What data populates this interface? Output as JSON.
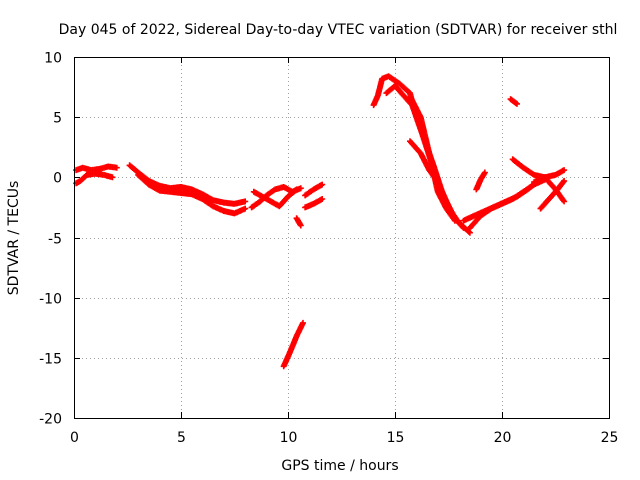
{
  "chart_data": {
    "type": "scatter",
    "title": "Day 045 of 2022, Sidereal Day-to-day VTEC variation (SDTVAR) for receiver sthl",
    "xlabel": "GPS time / hours",
    "ylabel": "SDTVAR / TECUs",
    "xlim": [
      0,
      25
    ],
    "ylim": [
      -20,
      10
    ],
    "xticks": [
      0,
      5,
      10,
      15,
      20,
      25
    ],
    "yticks": [
      -20,
      -15,
      -10,
      -5,
      0,
      5,
      10
    ],
    "xtick_labels": [
      "0",
      "5",
      "10",
      "15",
      "20",
      "25"
    ],
    "ytick_labels": [
      "-20",
      "-15",
      "-10",
      "-5",
      "0",
      "5",
      "10"
    ],
    "grid": true,
    "marker": "plus",
    "series": [
      {
        "name": "SDTVAR",
        "color": "#ff0000",
        "segments": [
          [
            [
              0.1,
              0.6
            ],
            [
              0.4,
              0.8
            ],
            [
              0.8,
              0.6
            ],
            [
              1.2,
              0.7
            ],
            [
              1.6,
              0.9
            ],
            [
              2.0,
              0.8
            ]
          ],
          [
            [
              0.1,
              -0.5
            ],
            [
              0.3,
              -0.3
            ],
            [
              0.6,
              0.2
            ],
            [
              1.0,
              0.3
            ],
            [
              1.4,
              0.2
            ],
            [
              1.8,
              0.0
            ]
          ],
          [
            [
              2.6,
              1.0
            ],
            [
              3.0,
              0.4
            ],
            [
              3.5,
              -0.3
            ],
            [
              4.0,
              -0.7
            ],
            [
              4.5,
              -0.9
            ],
            [
              5.0,
              -0.8
            ],
            [
              5.5,
              -1.0
            ],
            [
              6.0,
              -1.4
            ],
            [
              6.5,
              -1.9
            ],
            [
              7.0,
              -2.1
            ],
            [
              7.5,
              -2.2
            ],
            [
              8.0,
              -2.0
            ]
          ],
          [
            [
              3.0,
              0.2
            ],
            [
              3.5,
              -0.6
            ],
            [
              4.0,
              -1.1
            ],
            [
              4.5,
              -1.2
            ],
            [
              5.0,
              -1.3
            ],
            [
              5.5,
              -1.4
            ],
            [
              6.0,
              -1.8
            ],
            [
              6.5,
              -2.4
            ],
            [
              7.0,
              -2.8
            ],
            [
              7.5,
              -3.0
            ],
            [
              8.0,
              -2.6
            ]
          ],
          [
            [
              8.3,
              -2.5
            ],
            [
              8.7,
              -2.0
            ],
            [
              9.0,
              -1.5
            ],
            [
              9.4,
              -1.0
            ],
            [
              9.8,
              -0.8
            ],
            [
              10.2,
              -1.2
            ],
            [
              10.6,
              -0.9
            ]
          ],
          [
            [
              8.4,
              -1.2
            ],
            [
              8.8,
              -1.6
            ],
            [
              9.2,
              -2.0
            ],
            [
              9.6,
              -2.4
            ],
            [
              10.0,
              -1.6
            ],
            [
              10.4,
              -1.0
            ]
          ],
          [
            [
              10.8,
              -1.5
            ],
            [
              11.2,
              -1.0
            ],
            [
              11.6,
              -0.6
            ]
          ],
          [
            [
              10.8,
              -2.5
            ],
            [
              11.2,
              -2.2
            ],
            [
              11.6,
              -1.8
            ]
          ],
          [
            [
              10.4,
              -3.4
            ],
            [
              10.6,
              -4.0
            ]
          ],
          [
            [
              9.8,
              -15.7
            ],
            [
              10.1,
              -14.5
            ],
            [
              10.4,
              -13.2
            ],
            [
              10.7,
              -12.1
            ]
          ],
          [
            [
              14.0,
              6.0
            ],
            [
              14.2,
              6.8
            ],
            [
              14.4,
              8.2
            ],
            [
              14.7,
              8.4
            ],
            [
              15.2,
              7.8
            ],
            [
              15.7,
              7.0
            ],
            [
              16.0,
              5.0
            ],
            [
              16.4,
              3.0
            ],
            [
              16.8,
              1.0
            ],
            [
              17.2,
              -1.2
            ],
            [
              17.6,
              -2.8
            ],
            [
              18.0,
              -3.8
            ],
            [
              18.5,
              -4.6
            ]
          ],
          [
            [
              14.6,
              7.0
            ],
            [
              15.0,
              7.6
            ],
            [
              15.4,
              6.8
            ],
            [
              15.8,
              6.0
            ],
            [
              16.2,
              4.0
            ],
            [
              16.6,
              1.8
            ],
            [
              17.0,
              -0.4
            ],
            [
              17.4,
              -2.0
            ],
            [
              17.8,
              -3.4
            ],
            [
              18.2,
              -4.2
            ]
          ],
          [
            [
              15.8,
              6.4
            ],
            [
              16.2,
              5.0
            ],
            [
              16.6,
              2.0
            ],
            [
              17.0,
              -1.2
            ],
            [
              17.4,
              -2.6
            ],
            [
              17.8,
              -3.6
            ]
          ],
          [
            [
              15.7,
              3.0
            ],
            [
              16.2,
              2.0
            ],
            [
              16.6,
              0.6
            ],
            [
              17.0,
              -0.4
            ]
          ],
          [
            [
              18.5,
              -4.2
            ],
            [
              19.0,
              -3.2
            ],
            [
              19.5,
              -2.6
            ],
            [
              20.0,
              -2.2
            ],
            [
              20.5,
              -1.8
            ],
            [
              21.0,
              -1.2
            ],
            [
              21.5,
              -0.6
            ],
            [
              22.0,
              -0.2
            ]
          ],
          [
            [
              18.2,
              -3.6
            ],
            [
              18.7,
              -3.2
            ],
            [
              19.2,
              -2.8
            ],
            [
              19.7,
              -2.4
            ],
            [
              20.2,
              -2.0
            ],
            [
              20.7,
              -1.6
            ],
            [
              21.2,
              -1.0
            ],
            [
              21.6,
              -0.4
            ]
          ],
          [
            [
              20.5,
              1.5
            ],
            [
              21.0,
              0.8
            ],
            [
              21.5,
              0.2
            ],
            [
              22.0,
              0.0
            ],
            [
              22.5,
              0.2
            ],
            [
              22.9,
              0.6
            ]
          ],
          [
            [
              21.5,
              -0.4
            ],
            [
              22.0,
              0.0
            ],
            [
              22.5,
              -1.0
            ],
            [
              22.9,
              -2.0
            ]
          ],
          [
            [
              21.8,
              -2.6
            ],
            [
              22.2,
              -1.8
            ],
            [
              22.6,
              -1.0
            ],
            [
              22.9,
              -0.3
            ]
          ],
          [
            [
              18.8,
              -1.0
            ],
            [
              19.0,
              -0.2
            ],
            [
              19.2,
              0.4
            ]
          ],
          [
            [
              20.4,
              6.5
            ],
            [
              20.7,
              6.1
            ]
          ]
        ]
      }
    ]
  }
}
